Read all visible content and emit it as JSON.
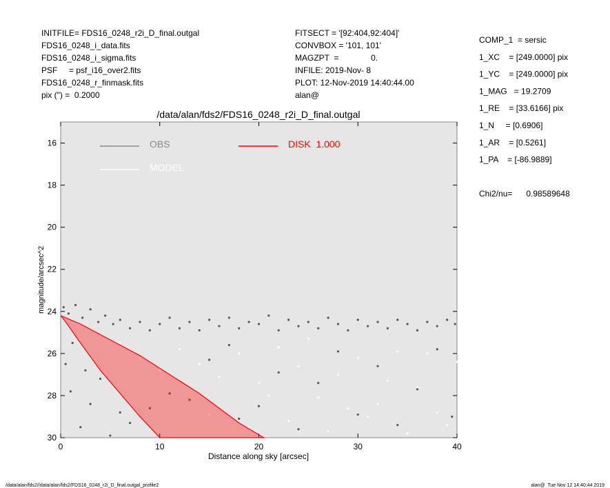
{
  "header": {
    "left": [
      "INITFILE= FDS16_0248_r2i_D_final.outgal",
      "FDS16_0248_i_data.fits",
      "FDS16_0248_i_sigma.fits",
      "PSF     = psf_i16_over2.fits",
      "FDS16_0248_r_finmask.fits",
      "pix (\") =  0.2000"
    ],
    "middle": [
      "FITSECT = '[92:404,92:404]'",
      "CONVBOX = '101, 101'",
      "MAGZPT  =              0.",
      "INFILE: 2019-Nov- 8",
      "PLOT: 12-Nov-2019 14:40:44.00",
      "alan@"
    ],
    "right": [
      "COMP_1  = sersic",
      "1_XC    = [249.0000] pix",
      "1_YC    = [249.0000] pix",
      "1_MAG   = 19.2709",
      "1_RE    = [33.6166] pix",
      "1_N     = [0.6906]",
      "1_AR    = [0.5261]",
      "1_PA    = [-86.9889]"
    ],
    "chi2": "Chi2/nu=      0.98589648"
  },
  "footer": {
    "left": "/data/alan/fds2//data/alan/fds2/FDS16_0248_r2i_D_final.outgal_profile2",
    "right": "alan@  Tue Nov 12 14:40:44 2019"
  },
  "chart_data": {
    "type": "scatter",
    "title": "/data/alan/fds2/FDS16_0248_r2i_D_final.outgal",
    "xlabel": "Distance along sky [arcsec]",
    "ylabel": "magnitude/arcsec^2",
    "xlim": [
      0,
      40
    ],
    "xticks": [
      0,
      10,
      20,
      30,
      40
    ],
    "ylim": [
      30,
      15
    ],
    "yticks": [
      16,
      18,
      20,
      22,
      24,
      26,
      28,
      30
    ],
    "series": [
      {
        "name": "OBS",
        "color": "#555555",
        "x": [
          0.3,
          0.8,
          1.5,
          2.2,
          3,
          3.8,
          4.5,
          5.3,
          6,
          7,
          8,
          9,
          10,
          11,
          12,
          13,
          14,
          15,
          16,
          17,
          18,
          19,
          20,
          21,
          22,
          23,
          24,
          25,
          26,
          27,
          28,
          29,
          30,
          31,
          32,
          33,
          34,
          35,
          36,
          37,
          38,
          39,
          39.8,
          0.5,
          1,
          2,
          3,
          1.2,
          2.5,
          4,
          5,
          6,
          7,
          9,
          11,
          13,
          15,
          17,
          18,
          20,
          22,
          24,
          26,
          28,
          30,
          32,
          34,
          36,
          38,
          39.5
        ],
        "values": [
          23.8,
          24.1,
          23.7,
          24.3,
          23.9,
          24.5,
          24.2,
          24.6,
          24.4,
          24.8,
          24.5,
          24.9,
          24.6,
          24.3,
          24.8,
          24.5,
          24.9,
          24.4,
          24.7,
          24.3,
          24.8,
          24.5,
          24.6,
          24.2,
          24.9,
          24.4,
          24.7,
          24.5,
          24.8,
          24.3,
          24.6,
          24.9,
          24.4,
          24.7,
          24.5,
          24.8,
          24.4,
          24.6,
          24.9,
          24.5,
          24.7,
          24.4,
          24.6,
          26.5,
          27.8,
          29.5,
          28.4,
          25.5,
          26.8,
          27.2,
          29.9,
          28.8,
          29.3,
          28.6,
          27.9,
          28.2,
          26.3,
          25.6,
          29.1,
          28.5,
          26.9,
          29.6,
          27.4,
          25.9,
          28.9,
          26.6,
          29.4,
          27.7,
          25.8,
          29.0
        ]
      },
      {
        "name": "MODEL",
        "color": "#ffffff",
        "x": [
          6,
          8,
          10,
          12,
          14,
          16,
          18,
          20,
          22,
          24,
          26,
          28,
          30,
          32,
          34,
          36,
          38,
          40,
          19,
          23,
          27,
          31,
          35,
          39,
          15,
          25,
          33,
          37,
          21,
          29
        ],
        "values": [
          25.5,
          26.2,
          26.8,
          25.8,
          26.5,
          27.1,
          26.0,
          27.4,
          25.7,
          26.6,
          28.1,
          27.0,
          26.2,
          28.4,
          25.9,
          27.6,
          28.8,
          26.4,
          29.5,
          29.2,
          29.7,
          29.0,
          29.8,
          29.4,
          28.9,
          25.3,
          27.3,
          26.0,
          28.0,
          28.6
        ]
      },
      {
        "name": "DISK  1.000",
        "color": "#ff0000",
        "area": true,
        "x": [
          0,
          2,
          4,
          6,
          8,
          10,
          12,
          14,
          16,
          18,
          20.5,
          10,
          8,
          6,
          4,
          2,
          0.5
        ],
        "values": [
          24.2,
          24.6,
          25.1,
          25.6,
          26.1,
          26.7,
          27.3,
          27.9,
          28.6,
          29.3,
          30,
          30,
          29.0,
          27.9,
          26.8,
          25.5,
          24.5
        ]
      }
    ]
  }
}
